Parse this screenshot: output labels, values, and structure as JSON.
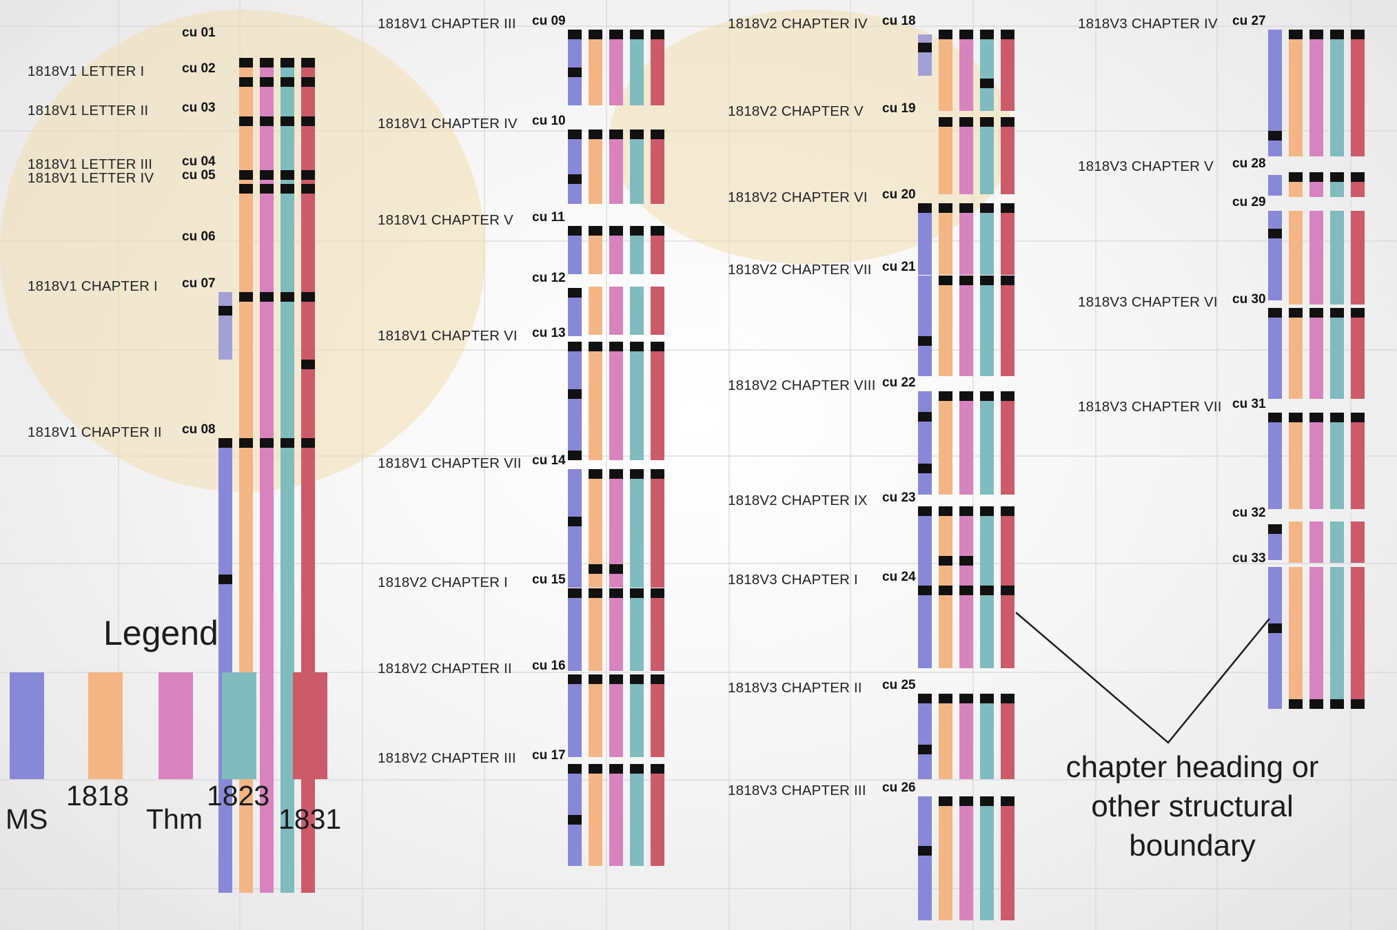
{
  "colors": {
    "MS": "#8888d8",
    "1818": "#f4b585",
    "Thm": "#d883be",
    "1823": "#80bbbd",
    "1831": "#cc5a69",
    "marker": "#111111",
    "highlight": "#f0deb2"
  },
  "editions": [
    "MS",
    "1818",
    "Thm",
    "1823",
    "1831"
  ],
  "legend": {
    "title": "Legend",
    "items": [
      "MS",
      "1818",
      "Thm",
      "1823",
      "1831"
    ]
  },
  "note": {
    "line1": "chapter heading or",
    "line2": "other structural",
    "line3": "boundary"
  },
  "units": [
    {
      "cu": "cu 01",
      "chapter": "",
      "bars": [
        [
          1,
          1,
          1
        ],
        [
          1,
          1,
          1
        ],
        [
          1,
          1,
          1
        ],
        [
          1,
          1,
          1
        ]
      ],
      "missing": [
        0
      ]
    },
    {
      "cu": "cu 02",
      "chapter": "1818V1 LETTER I",
      "bars": [
        [
          1
        ],
        [
          1
        ],
        [
          1
        ],
        [
          1
        ]
      ],
      "missing": [
        0
      ]
    },
    {
      "cu": "cu 03",
      "chapter": "1818V1 LETTER II",
      "bars": [
        [
          1
        ],
        [
          1
        ],
        [
          1
        ],
        [
          1
        ]
      ],
      "missing": [
        0
      ]
    },
    {
      "cu": "cu 04",
      "chapter": "1818V1 LETTER III",
      "bars": [
        [
          1
        ],
        [
          1
        ],
        [
          1
        ],
        [
          1
        ]
      ],
      "missing": [
        0
      ]
    },
    {
      "cu": "cu 05",
      "chapter": "1818V1 LETTER IV",
      "bars": [
        [
          1
        ],
        [
          1
        ],
        [
          1
        ],
        [
          1
        ]
      ],
      "missing": [
        0
      ]
    },
    {
      "cu": "cu 06",
      "chapter": "",
      "bars": [
        [],
        [],
        [],
        []
      ],
      "missing": [
        0
      ]
    },
    {
      "cu": "cu 07",
      "chapter": "1818V1 CHAPTER I",
      "bars": [
        [
          2
        ],
        [
          1
        ],
        [
          1
        ],
        [
          1
        ],
        [
          1,
          5
        ]
      ]
    },
    {
      "cu": "cu 08",
      "chapter": "1818V1 CHAPTER II",
      "bars": [
        [
          1,
          3
        ],
        [
          1
        ],
        [
          1
        ],
        [
          1
        ],
        [
          1
        ]
      ]
    },
    {
      "cu": "cu 09",
      "chapter": "1818V1 CHAPTER III",
      "bars": [
        [
          1,
          5
        ],
        [
          1
        ],
        [
          1
        ],
        [
          1
        ],
        [
          1
        ]
      ]
    },
    {
      "cu": "cu 10",
      "chapter": "1818V1 CHAPTER IV",
      "bars": [
        [
          1,
          6
        ],
        [
          1
        ],
        [
          1
        ],
        [
          1
        ],
        [
          1
        ]
      ]
    },
    {
      "cu": "cu 11",
      "chapter": "1818V1 CHAPTER V",
      "bars": [
        [
          1
        ],
        [
          1
        ],
        [
          1
        ],
        [
          1
        ],
        [
          1
        ]
      ]
    },
    {
      "cu": "cu 12",
      "chapter": "",
      "bars": [
        [
          1
        ],
        [],
        [],
        [],
        []
      ]
    },
    {
      "cu": "cu 13",
      "chapter": "1818V1 CHAPTER VI",
      "bars": [
        [
          1,
          4,
          9
        ],
        [
          1
        ],
        [
          1
        ],
        [
          1
        ],
        [
          1
        ]
      ]
    },
    {
      "cu": "cu 14",
      "chapter": "1818V1 CHAPTER VII",
      "bars": [
        [
          4
        ],
        [
          1,
          8
        ],
        [
          1,
          8
        ],
        [
          1
        ],
        [
          1
        ]
      ]
    },
    {
      "cu": "cu 15",
      "chapter": "1818V2 CHAPTER I",
      "bars": [
        [
          1
        ],
        [
          1
        ],
        [
          1
        ],
        [
          1
        ],
        [
          1
        ]
      ]
    },
    {
      "cu": "cu 16",
      "chapter": "1818V2 CHAPTER II",
      "bars": [
        [
          1
        ],
        [
          1
        ],
        [
          1
        ],
        [
          1
        ],
        [
          1
        ]
      ]
    },
    {
      "cu": "cu 17",
      "chapter": "1818V2 CHAPTER III",
      "bars": [
        [
          1,
          5
        ],
        [
          1
        ],
        [
          1
        ],
        [
          1
        ],
        [
          1
        ]
      ]
    },
    {
      "cu": "cu 18",
      "chapter": "1818V2 CHAPTER IV",
      "bars": [
        [
          2
        ],
        [
          1
        ],
        [
          1
        ],
        [
          1,
          6
        ],
        [
          1
        ]
      ]
    },
    {
      "cu": "cu 19",
      "chapter": "1818V2 CHAPTER V",
      "bars": [
        [],
        [
          1
        ],
        [
          1
        ],
        [
          1
        ],
        [
          1
        ]
      ],
      "missing": [
        0
      ]
    },
    {
      "cu": "cu 20",
      "chapter": "1818V2 CHAPTER VI",
      "bars": [
        [
          1
        ],
        [
          1
        ],
        [
          1
        ],
        [
          1
        ],
        [
          1
        ]
      ]
    },
    {
      "cu": "cu 21",
      "chapter": "1818V2 CHAPTER VII",
      "bars": [
        [
          6
        ],
        [
          1
        ],
        [
          1
        ],
        [
          1
        ],
        [
          1
        ]
      ]
    },
    {
      "cu": "cu 22",
      "chapter": "1818V2 CHAPTER VIII",
      "bars": [
        [
          2,
          7
        ],
        [
          1
        ],
        [
          1
        ],
        [
          1
        ],
        [
          1
        ]
      ]
    },
    {
      "cu": "cu 23",
      "chapter": "1818V2 CHAPTER IX",
      "bars": [
        [
          1
        ],
        [
          1,
          6
        ],
        [
          1,
          6
        ],
        [
          1
        ],
        [
          1
        ]
      ]
    },
    {
      "cu": "cu 24",
      "chapter": "1818V3 CHAPTER I",
      "bars": [
        [
          1
        ],
        [
          1
        ],
        [
          1
        ],
        [
          1
        ],
        [
          1
        ]
      ]
    },
    {
      "cu": "cu 25",
      "chapter": "1818V3 CHAPTER II",
      "bars": [
        [
          1,
          6
        ],
        [
          1
        ],
        [
          1
        ],
        [
          1
        ],
        [
          1
        ]
      ]
    },
    {
      "cu": "cu 26",
      "chapter": "1818V3 CHAPTER III",
      "bars": [
        [
          4
        ],
        [
          1
        ],
        [
          1
        ],
        [
          1
        ],
        [
          1
        ]
      ]
    },
    {
      "cu": "cu 27",
      "chapter": "1818V3 CHAPTER IV",
      "bars": [
        [
          8
        ],
        [
          1
        ],
        [
          1
        ],
        [
          1
        ],
        [
          1
        ]
      ]
    },
    {
      "cu": "cu 28",
      "chapter": "1818V3 CHAPTER V",
      "bars": [
        [],
        [
          1
        ],
        [
          1
        ],
        [
          1
        ],
        [
          1
        ]
      ]
    },
    {
      "cu": "cu 29",
      "chapter": "",
      "bars": [
        [
          2
        ],
        [],
        [],
        [],
        []
      ]
    },
    {
      "cu": "cu 30",
      "chapter": "1818V3 CHAPTER VI",
      "bars": [
        [
          1
        ],
        [
          1
        ],
        [
          1
        ],
        [
          1
        ],
        [
          1
        ]
      ]
    },
    {
      "cu": "cu 31",
      "chapter": "1818V3 CHAPTER VII",
      "bars": [
        [
          1
        ],
        [
          1
        ],
        [
          1
        ],
        [
          1
        ],
        [
          1
        ]
      ]
    },
    {
      "cu": "cu 32",
      "chapter": "",
      "bars": [
        [
          1
        ],
        [],
        [],
        [],
        []
      ]
    },
    {
      "cu": "cu 33",
      "chapter": "",
      "bars": [
        [
          4
        ],
        [
          9
        ],
        [
          9
        ],
        [
          9
        ],
        [
          9
        ]
      ]
    }
  ]
}
